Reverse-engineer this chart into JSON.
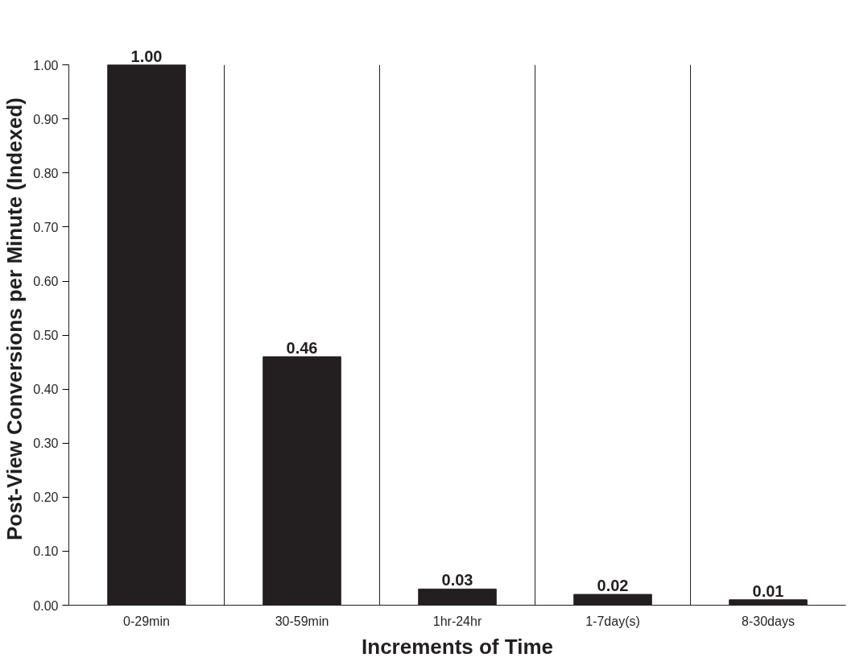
{
  "chart_data": {
    "type": "bar",
    "xlabel": "Increments of Time",
    "ylabel": "Post-View Conversions per Minute (Indexed)",
    "categories": [
      "0-29min",
      "30-59min",
      "1hr-24hr",
      "1-7day(s)",
      "8-30days"
    ],
    "values": [
      1.0,
      0.46,
      0.03,
      0.02,
      0.01
    ],
    "value_labels": [
      "1.00",
      "0.46",
      "0.03",
      "0.02",
      "0.01"
    ],
    "color": "#231f20",
    "ylim": [
      0,
      1.0
    ],
    "yticks": [
      {
        "value": 0,
        "label": "0.00"
      },
      {
        "value": 0.1,
        "label": "0.10"
      },
      {
        "value": 0.2,
        "label": "0.20"
      },
      {
        "value": 0.3,
        "label": "0.30"
      },
      {
        "value": 0.4,
        "label": "0.40"
      },
      {
        "value": 0.5,
        "label": "0.50"
      },
      {
        "value": 0.6,
        "label": "0.60"
      },
      {
        "value": 0.7,
        "label": "0.70"
      },
      {
        "value": 0.8,
        "label": "0.80"
      },
      {
        "value": 0.9,
        "label": "0.90"
      },
      {
        "value": 1.0,
        "label": "1.00"
      }
    ],
    "grid": "x"
  }
}
